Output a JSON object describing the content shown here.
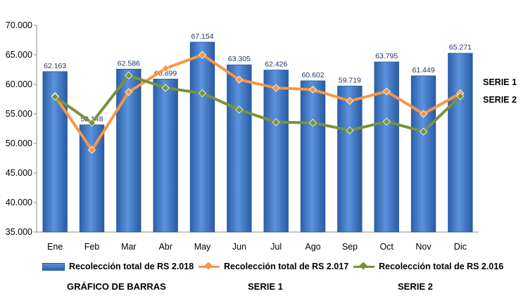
{
  "chart_data": {
    "type": "bar+line",
    "categories": [
      "Ene",
      "Feb",
      "Mar",
      "Abr",
      "May",
      "Jun",
      "Jul",
      "Ago",
      "Sep",
      "Oct",
      "Nov",
      "Dic"
    ],
    "ylim": [
      35000,
      70000
    ],
    "yticks": [
      35000,
      40000,
      45000,
      50000,
      55000,
      60000,
      65000,
      70000
    ],
    "ytick_labels": [
      "35.000",
      "40.000",
      "45.000",
      "50.000",
      "55.000",
      "60.000",
      "65.000",
      "70.000"
    ],
    "grid": false,
    "legend_position": "bottom",
    "series": [
      {
        "name": "Recolección total de RS 2.018",
        "kind": "bar",
        "color": "#3a72c4",
        "values": [
          62163,
          53148,
          62586,
          60899,
          67154,
          63305,
          62426,
          60602,
          59719,
          63795,
          61449,
          65271
        ],
        "data_labels": [
          "62.163",
          "53.148",
          "62.586",
          "60.899",
          "67.154",
          "63.305",
          "62.426",
          "60.602",
          "59.719",
          "63.795",
          "61.449",
          "65.271"
        ]
      },
      {
        "name": "Recolección total de RS 2.017",
        "kind": "line",
        "color": "#f79646",
        "values": [
          58000,
          48900,
          58700,
          62700,
          65000,
          60800,
          59400,
          59100,
          57200,
          58800,
          55000,
          58500
        ]
      },
      {
        "name": "Recolección total de RS 2.016",
        "kind": "line",
        "color": "#77933c",
        "values": [
          57900,
          53500,
          61500,
          59400,
          58500,
          55700,
          53600,
          53500,
          52200,
          53700,
          52000,
          58000
        ]
      }
    ],
    "side_labels": [
      "SERIE 1",
      "SERIE 2"
    ]
  },
  "captions": {
    "bars": "GRÁFICO DE BARRAS",
    "serie1": "SERIE 1",
    "serie2": "SERIE 2"
  }
}
